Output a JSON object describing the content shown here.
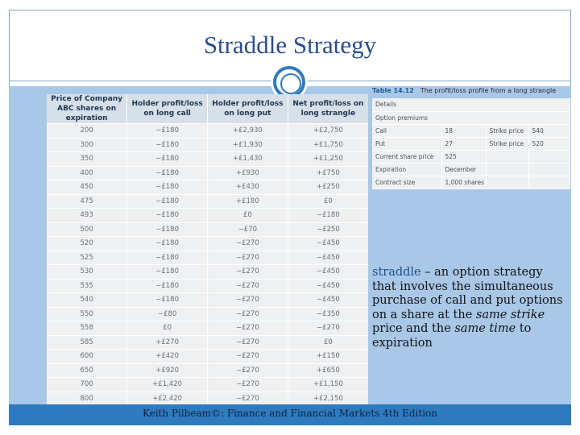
{
  "title": "Straddle Strategy",
  "footer": "Keith Pilbeam©: Finance and Financial Markets 4th Edition",
  "main_table": {
    "headers": [
      "Price of Company ABC shares on expiration",
      "Holder profit/loss on long call",
      "Holder profit/loss on long put",
      "Net profit/loss on long strangle"
    ],
    "rows": [
      [
        "200",
        "−£180",
        "+£2,930",
        "+£2,750"
      ],
      [
        "300",
        "−£180",
        "+£1,930",
        "+£1,750"
      ],
      [
        "350",
        "−£180",
        "+£1,430",
        "+£1,250"
      ],
      [
        "400",
        "−£180",
        "+£930",
        "+£750"
      ],
      [
        "450",
        "−£180",
        "+£430",
        "+£250"
      ],
      [
        "475",
        "−£180",
        "+£180",
        "£0"
      ],
      [
        "493",
        "−£180",
        "£0",
        "−£180"
      ],
      [
        "500",
        "−£180",
        "−£70",
        "−£250"
      ],
      [
        "520",
        "−£180",
        "−£270",
        "−£450"
      ],
      [
        "525",
        "−£180",
        "−£270",
        "−£450"
      ],
      [
        "530",
        "−£180",
        "−£270",
        "−£450"
      ],
      [
        "535",
        "−£180",
        "−£270",
        "−£450"
      ],
      [
        "540",
        "−£180",
        "−£270",
        "−£450"
      ],
      [
        "550",
        "−£80",
        "−£270",
        "−£350"
      ],
      [
        "558",
        "£0",
        "−£270",
        "−£270"
      ],
      [
        "585",
        "+£270",
        "−£270",
        "£0"
      ],
      [
        "600",
        "+£420",
        "−£270",
        "+£150"
      ],
      [
        "650",
        "+£920",
        "−£270",
        "+£650"
      ],
      [
        "700",
        "+£1,420",
        "−£270",
        "+£1,150"
      ],
      [
        "800",
        "+£2,420",
        "−£270",
        "+£2,150"
      ]
    ]
  },
  "option_table": {
    "label_number": "Table 14.12",
    "label_text": "The profit/loss profile from a long strangle",
    "rows": [
      [
        "Details",
        "",
        "",
        ""
      ],
      [
        "Option premiums",
        "",
        "",
        ""
      ],
      [
        "Call",
        "18",
        "Strike price",
        "540"
      ],
      [
        "Put",
        "27",
        "Strike price",
        "520"
      ],
      [
        "Current share price",
        "525",
        "",
        ""
      ],
      [
        "Expiration",
        "December",
        "",
        ""
      ],
      [
        "Contract size",
        "1,000 shares",
        "",
        ""
      ]
    ]
  },
  "definition": {
    "term": "straddle",
    "part1": " – an option strategy that involves the simultaneous purchase of call and put options on a share at the ",
    "emph1": "same strike",
    "part2": " price and the ",
    "emph2": "same time",
    "part3": " to expiration"
  }
}
